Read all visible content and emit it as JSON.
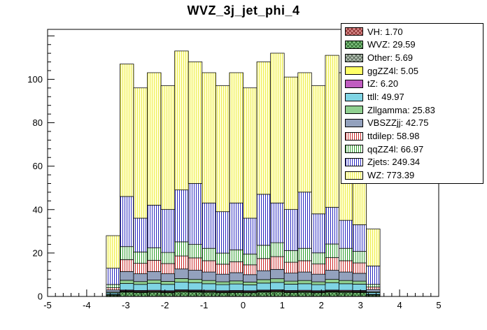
{
  "page": {
    "background": "#ffffff"
  },
  "chart_data": {
    "type": "bar",
    "variant": "stacked-histogram",
    "title": "WVZ_3j_jet_phi_4",
    "x_axis": {
      "min": -5,
      "max": 5,
      "major_ticks": [
        -5,
        -4,
        -3,
        -2,
        -1,
        0,
        1,
        2,
        3,
        4,
        5
      ],
      "minor_step": 0.2
    },
    "y_axis": {
      "min": 0,
      "max": 123,
      "major_ticks": [
        0,
        20,
        40,
        60,
        80,
        100
      ],
      "minor_step": 4
    },
    "grid": false,
    "legend_position": "top-right",
    "bin_edges": [
      -3.5,
      -3.15,
      -2.8,
      -2.45,
      -2.1,
      -1.75,
      -1.4,
      -1.05,
      -0.7,
      -0.35,
      0,
      0.35,
      0.7,
      1.05,
      1.4,
      1.75,
      2.1,
      2.45,
      2.8,
      3.15,
      3.5
    ],
    "series": [
      {
        "name": "VH",
        "integral": "1.70",
        "fill": {
          "style": "cross",
          "bg": "#d98c8c",
          "line": "#8b3030"
        },
        "values": [
          0.05,
          0.1,
          0.1,
          0.1,
          0.1,
          0.1,
          0.1,
          0.1,
          0.1,
          0.1,
          0.1,
          0.1,
          0.1,
          0.1,
          0.1,
          0.1,
          0.1,
          0.1,
          0.1,
          0.05
        ]
      },
      {
        "name": "WVZ",
        "integral": "29.59",
        "fill": {
          "style": "cross",
          "bg": "#7fbf7f",
          "line": "#2e6b2e"
        },
        "values": [
          0.55,
          1.9,
          1.7,
          1.8,
          1.6,
          2.0,
          1.9,
          1.8,
          1.6,
          1.7,
          1.6,
          1.9,
          2.0,
          1.7,
          1.8,
          1.6,
          1.9,
          1.8,
          1.7,
          0.6
        ]
      },
      {
        "name": "Other",
        "integral": "5.69",
        "fill": {
          "style": "cross",
          "bg": "#b3bfb3",
          "line": "#5a6a5a"
        },
        "values": [
          0.1,
          0.3,
          0.3,
          0.3,
          0.3,
          0.3,
          0.3,
          0.3,
          0.3,
          0.3,
          0.3,
          0.3,
          0.3,
          0.3,
          0.3,
          0.3,
          0.3,
          0.3,
          0.3,
          0.1
        ]
      },
      {
        "name": "ggZZ4l",
        "integral": "5.05",
        "fill": {
          "style": "solid",
          "color": "#ffff66"
        },
        "values": [
          0.1,
          0.3,
          0.3,
          0.3,
          0.3,
          0.3,
          0.3,
          0.3,
          0.3,
          0.3,
          0.3,
          0.3,
          0.3,
          0.3,
          0.3,
          0.3,
          0.3,
          0.3,
          0.3,
          0.1
        ]
      },
      {
        "name": "tZ",
        "integral": "6.20",
        "fill": {
          "style": "solid",
          "color": "#c05cc0"
        },
        "values": [
          0.1,
          0.35,
          0.35,
          0.35,
          0.35,
          0.35,
          0.35,
          0.35,
          0.35,
          0.35,
          0.35,
          0.35,
          0.35,
          0.35,
          0.35,
          0.35,
          0.35,
          0.35,
          0.35,
          0.1
        ]
      },
      {
        "name": "ttll",
        "integral": "49.97",
        "fill": {
          "style": "solid",
          "color": "#7fd4e4"
        },
        "values": [
          0.7,
          3.0,
          2.8,
          3.2,
          2.9,
          3.5,
          3.3,
          3.0,
          2.8,
          3.0,
          2.7,
          3.2,
          3.4,
          2.9,
          3.0,
          2.8,
          3.3,
          3.0,
          2.9,
          0.8
        ]
      },
      {
        "name": "Zllgamma",
        "integral": "25.83",
        "fill": {
          "style": "solid",
          "color": "#90d090"
        },
        "values": [
          0.4,
          1.5,
          1.3,
          1.5,
          1.4,
          1.7,
          1.6,
          1.5,
          1.3,
          1.4,
          1.3,
          1.6,
          1.7,
          1.4,
          1.5,
          1.3,
          1.6,
          1.5,
          1.4,
          0.4
        ]
      },
      {
        "name": "VBSZZjj",
        "integral": "42.75",
        "fill": {
          "style": "solid",
          "color": "#93a1bd"
        },
        "values": [
          1.0,
          4.0,
          3.6,
          3.9,
          3.5,
          4.4,
          4.2,
          3.9,
          3.5,
          3.8,
          3.4,
          4.1,
          4.3,
          3.7,
          3.9,
          3.5,
          4.2,
          3.9,
          3.6,
          1.1
        ]
      },
      {
        "name": "ttdilep",
        "integral": "58.98",
        "fill": {
          "style": "vlines",
          "bg": "#ffffff",
          "line": "#cc2a2a"
        },
        "values": [
          1.0,
          5.5,
          4.8,
          5.2,
          4.7,
          6.0,
          5.7,
          5.2,
          4.6,
          5.0,
          4.5,
          5.6,
          5.9,
          5.0,
          5.2,
          4.7,
          5.8,
          5.2,
          4.8,
          1.1
        ]
      },
      {
        "name": "qqZZ4l",
        "integral": "66.97",
        "fill": {
          "style": "vlines",
          "bg": "#ffffff",
          "line": "#2e9e2e"
        },
        "values": [
          1.5,
          6.0,
          5.2,
          5.7,
          5.1,
          6.5,
          6.2,
          5.7,
          5.1,
          5.5,
          5.0,
          6.1,
          6.4,
          5.4,
          5.7,
          5.1,
          6.3,
          5.7,
          5.3,
          1.2
        ]
      },
      {
        "name": "Zjets",
        "integral": "249.34",
        "fill": {
          "style": "vlines",
          "bg": "#ffffff",
          "line": "#2929c0"
        },
        "values": [
          7.5,
          23.1,
          15.6,
          19.7,
          19.8,
          23.9,
          28.1,
          20.9,
          19.1,
          21.6,
          16.5,
          23.5,
          18.3,
          18.9,
          25.9,
          18.0,
          16.9,
          12.9,
          12.3,
          8.5
        ]
      },
      {
        "name": "WZ",
        "integral": "773.39",
        "fill": {
          "style": "vlines",
          "bg": "#ffffd4",
          "line": "#eded55"
        },
        "values": [
          15,
          61,
          60,
          61,
          57,
          64,
          56,
          60,
          58,
          60,
          60,
          61,
          69,
          61,
          55,
          59,
          70,
          68,
          65,
          17
        ]
      }
    ]
  }
}
